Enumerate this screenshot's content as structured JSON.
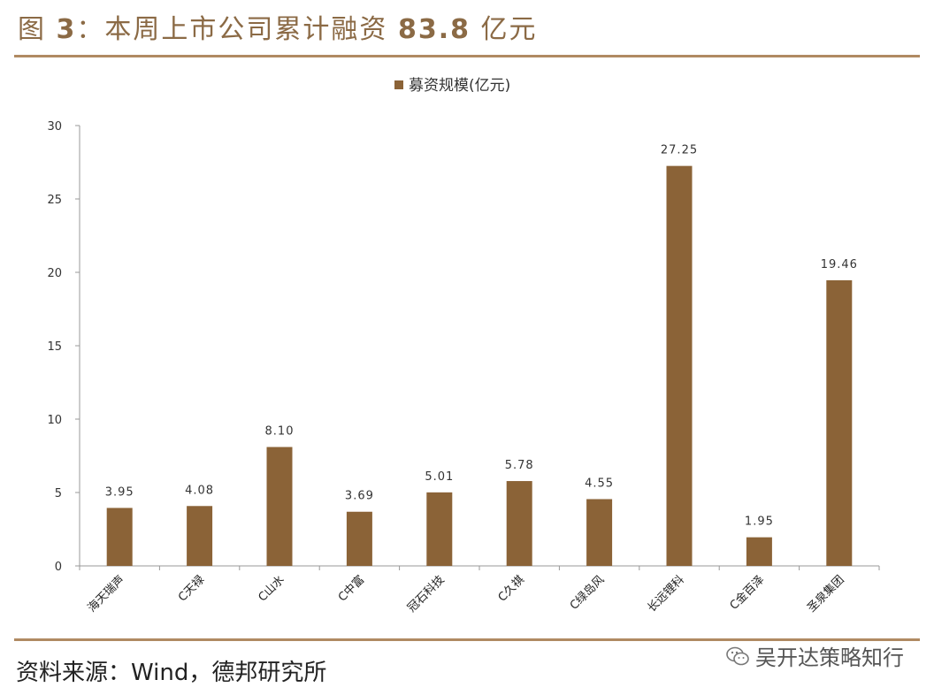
{
  "figure": {
    "title_prefix": "图 ",
    "title_num": "3",
    "title_rest": "：本周上市公司累计融资 ",
    "title_amount": "83.8",
    "title_unit": " 亿元",
    "source": "资料来源：Wind，德邦研究所",
    "watermark": "吴开达策略知行",
    "watermark_icon": "wechat-icon"
  },
  "colors": {
    "bar": "#8b6337",
    "rule": "#b08a62",
    "axis": "#999999",
    "title": "#8b6a45"
  },
  "chart_data": {
    "type": "bar",
    "title": "",
    "xlabel": "",
    "ylabel": "",
    "legend": {
      "position": "top-center"
    },
    "grid": false,
    "ylim": [
      0,
      30
    ],
    "yticks": [
      0,
      5,
      10,
      15,
      20,
      25,
      30
    ],
    "categories": [
      "海天瑞声",
      "C天禄",
      "C山水",
      "C中富",
      "冠石科技",
      "C久祺",
      "C绿岛风",
      "长远锂科",
      "C金百泽",
      "圣泉集团"
    ],
    "series": [
      {
        "name": "募资规模(亿元)",
        "values": [
          3.95,
          4.08,
          8.1,
          3.69,
          5.01,
          5.78,
          4.55,
          27.25,
          1.95,
          19.46
        ],
        "labels": [
          "3.95",
          "4.08",
          "8.10",
          "3.69",
          "5.01",
          "5.78",
          "4.55",
          "27.25",
          "1.95",
          "19.46"
        ]
      }
    ]
  }
}
